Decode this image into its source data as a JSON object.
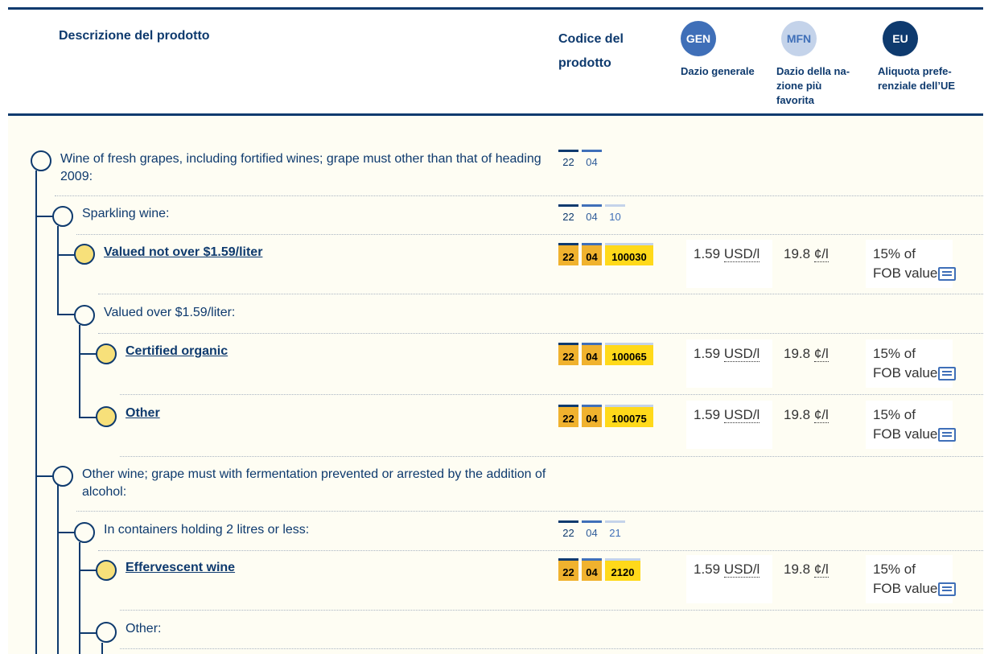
{
  "header": {
    "description_label": "Descrizione del prodotto",
    "code_label": "Codice del prodotto",
    "gen": {
      "badge": "GEN",
      "label": "Dazio generale"
    },
    "mfn": {
      "badge": "MFN",
      "label": "Dazio della na-zione più favorita"
    },
    "eu": {
      "badge": "EU",
      "label": "Aliquota prefe-renziale dell’UE"
    }
  },
  "rows": [
    {
      "text": "Wine of fresh grapes, including fortified wines; grape must other than that of heading 2009:",
      "code": [
        "22",
        "04"
      ]
    },
    {
      "text": "Sparkling wine:",
      "code": [
        "22",
        "04",
        "10"
      ]
    },
    {
      "text": "Valued not over $1.59/liter",
      "code": [
        "22",
        "04",
        "100030"
      ],
      "gen_value": "1.59",
      "gen_unit": "USD/l",
      "mfn_value": "19.8",
      "mfn_unit": "¢/l",
      "eu_line1": "15% of",
      "eu_line2": "FOB value"
    },
    {
      "text": "Valued over $1.59/liter:"
    },
    {
      "text": "Certified organic",
      "code": [
        "22",
        "04",
        "100065"
      ],
      "gen_value": "1.59",
      "gen_unit": "USD/l",
      "mfn_value": "19.8",
      "mfn_unit": "¢/l",
      "eu_line1": "15% of",
      "eu_line2": "FOB value"
    },
    {
      "text": "Other",
      "code": [
        "22",
        "04",
        "100075"
      ],
      "gen_value": "1.59",
      "gen_unit": "USD/l",
      "mfn_value": "19.8",
      "mfn_unit": "¢/l",
      "eu_line1": "15% of",
      "eu_line2": "FOB value"
    },
    {
      "text": "Other wine; grape must with fermentation prevented or arrested by the addition of alcohol:"
    },
    {
      "text": "In containers holding 2 litres or less:",
      "code": [
        "22",
        "04",
        "21"
      ]
    },
    {
      "text": "Effervescent wine",
      "code": [
        "22",
        "04",
        "2120"
      ],
      "gen_value": "1.59",
      "gen_unit": "USD/l",
      "mfn_value": "19.8",
      "mfn_unit": "¢/l",
      "eu_line1": "15% of",
      "eu_line2": "FOB value"
    },
    {
      "text": "Other:"
    }
  ]
}
